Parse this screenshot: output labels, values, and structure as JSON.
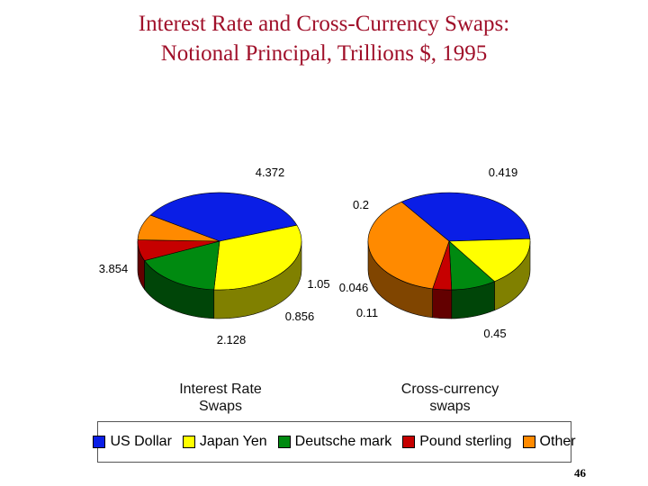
{
  "title_line1": "Interest Rate and Cross-Currency Swaps:",
  "title_line2": "Notional Principal, Trillions $, 1995",
  "page_number": "46",
  "chart_data": [
    {
      "type": "pie",
      "name_line1": "Interest Rate",
      "name_line2": "Swaps",
      "categories": [
        "US Dollar",
        "Japan Yen",
        "Deutsche mark",
        "Pound sterling",
        "Other"
      ],
      "values": [
        4.372,
        3.854,
        2.128,
        0.856,
        1.05
      ],
      "value_labels": [
        "4.372",
        "3.854",
        "2.128",
        "0.856",
        "1.05"
      ],
      "colors": [
        "#0a1ee6",
        "#ffff00",
        "#008a10",
        "#c60000",
        "#ff8a00"
      ]
    },
    {
      "type": "pie",
      "name_line1": "Cross-currency",
      "name_line2": "swaps",
      "categories": [
        "US Dollar",
        "Japan Yen",
        "Deutsche mark",
        "Pound sterling",
        "Other"
      ],
      "values": [
        0.419,
        0.2,
        0.11,
        0.046,
        0.45
      ],
      "value_labels": [
        "0.419",
        "0.2",
        "0.11",
        "0.046",
        "0.45"
      ],
      "colors": [
        "#0a1ee6",
        "#ffff00",
        "#008a10",
        "#c60000",
        "#ff8a00"
      ]
    }
  ],
  "legend": [
    {
      "label": "US Dollar",
      "color": "#0a1ee6"
    },
    {
      "label": "Japan Yen",
      "color": "#ffff00"
    },
    {
      "label": "Deutsche mark",
      "color": "#008a10"
    },
    {
      "label": "Pound sterling",
      "color": "#c60000"
    },
    {
      "label": "Other",
      "color": "#ff8a00"
    }
  ]
}
